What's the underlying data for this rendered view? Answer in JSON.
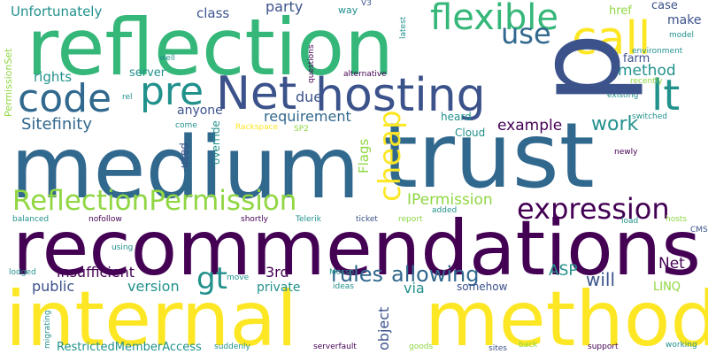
{
  "palette": {
    "dark_purple": "#440154",
    "navy": "#3b528b",
    "teal_blue": "#31688e",
    "teal": "#21918c",
    "green": "#35b779",
    "light_green": "#90d743",
    "yellow": "#fde725"
  },
  "words": [
    "medium",
    "trust",
    "recommendations",
    "reflection",
    "internal",
    "method",
    "hosting",
    "Net",
    "code",
    "pre",
    "lt",
    "call",
    "flexible",
    "use",
    "ReflectionPermission",
    "expression",
    "cheap",
    "Sitefinity",
    "rules",
    "allowing",
    "gt",
    "insufficient",
    "public",
    "version",
    "3rd",
    "will",
    "Net",
    "ASP",
    "IPermission",
    "work",
    "example",
    "requirement",
    "method",
    "rights",
    "server",
    "anyone",
    "due",
    "Unfortunately",
    "class",
    "party",
    "way",
    "V3",
    "href",
    "case",
    "make",
    "farm",
    "heard",
    "Cloud",
    "PermissionSet",
    "questions",
    "latest",
    "well",
    "rel",
    "come",
    "Rackspace",
    "SP2",
    "used",
    "override",
    "Flags",
    "object",
    "via",
    "somehow",
    "LINQ",
    "private",
    "move",
    "ideas",
    "Mosso",
    "lodged",
    "migrating",
    "RestrictedMemberAccess",
    "suddenly",
    "serverfault",
    "goods",
    "sites",
    "back",
    "support",
    "working",
    "balanced",
    "nofollow",
    "shortly",
    "Telerik",
    "ticket",
    "report",
    "added",
    "load",
    "hosts",
    "CMS",
    "using",
    "existing",
    "switched",
    "recently",
    "newly",
    "environment",
    "model",
    "alternative",
    "p"
  ]
}
